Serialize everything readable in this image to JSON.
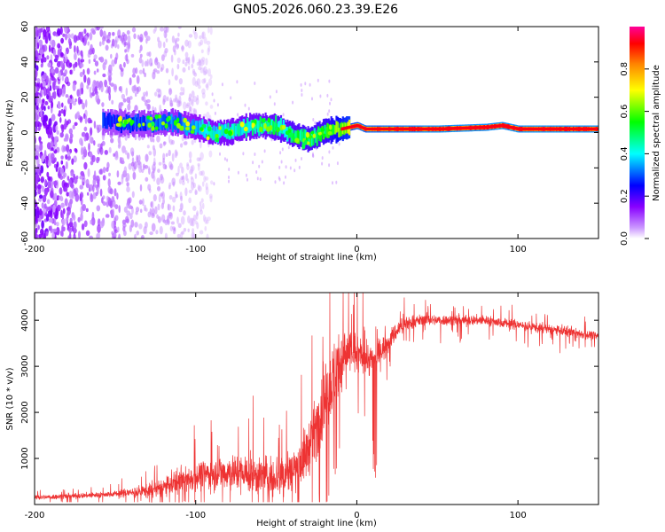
{
  "page": {
    "title": "GN05.2026.060.23.39.E26"
  },
  "chart_data": [
    {
      "type": "heatmap",
      "name": "spectrogram",
      "title": "GN05.2026.060.23.39.E26",
      "xlabel": "Height of straight line (km)",
      "ylabel": "Frequency (Hz)",
      "xlim": [
        -200,
        150
      ],
      "ylim": [
        -60,
        60
      ],
      "xticks": [
        "-200",
        "-100",
        "0",
        "100"
      ],
      "yticks": [
        "-60",
        "-40",
        "-20",
        "0",
        "20",
        "40",
        "60"
      ],
      "colorbar": {
        "label": "Normalized spectral amplitude",
        "range": [
          0,
          1
        ],
        "ticks": [
          "0.0",
          "0.2",
          "0.4",
          "0.6",
          "0.8"
        ]
      },
      "band_center_freq": [
        [
          -155,
          6
        ],
        [
          -140,
          5
        ],
        [
          -125,
          5
        ],
        [
          -115,
          6
        ],
        [
          -100,
          3
        ],
        [
          -90,
          0
        ],
        [
          -80,
          0
        ],
        [
          -70,
          3
        ],
        [
          -60,
          4
        ],
        [
          -50,
          3
        ],
        [
          -40,
          -1
        ],
        [
          -30,
          -4
        ],
        [
          -20,
          1
        ],
        [
          -10,
          2
        ],
        [
          -5,
          3
        ],
        [
          0,
          4
        ],
        [
          5,
          2
        ],
        [
          20,
          2
        ],
        [
          50,
          2
        ],
        [
          80,
          3
        ],
        [
          90,
          4
        ],
        [
          100,
          2
        ],
        [
          150,
          2
        ]
      ],
      "band_intensity": [
        [
          -155,
          0.3
        ],
        [
          -120,
          0.35
        ],
        [
          -90,
          0.45
        ],
        [
          -60,
          0.5
        ],
        [
          -40,
          0.55
        ],
        [
          -20,
          0.6
        ],
        [
          -10,
          0.75
        ],
        [
          0,
          0.85
        ],
        [
          50,
          0.95
        ],
        [
          150,
          0.95
        ]
      ]
    },
    {
      "type": "line",
      "name": "snr",
      "xlabel": "Height of straight line (km)",
      "ylabel": "SNR (10 * v/v)",
      "xlim": [
        -200,
        150
      ],
      "ylim": [
        0,
        4600
      ],
      "xticks": [
        "-200",
        "-100",
        "0",
        "100"
      ],
      "yticks": [
        "1000",
        "2000",
        "3000",
        "4000"
      ],
      "color": "#ee3333",
      "series": [
        {
          "name": "SNR",
          "x": [
            -200,
            -180,
            -160,
            -140,
            -125,
            -115,
            -105,
            -95,
            -85,
            -75,
            -65,
            -55,
            -45,
            -38,
            -32,
            -27,
            -22,
            -18,
            -15,
            -12,
            -10,
            -8,
            -5,
            0,
            5,
            8,
            11,
            13,
            15,
            18,
            22,
            27,
            32,
            40,
            60,
            80,
            100,
            120,
            150
          ],
          "y": [
            150,
            180,
            210,
            260,
            320,
            430,
            550,
            650,
            700,
            700,
            640,
            600,
            660,
            780,
            1050,
            1500,
            2000,
            2450,
            2750,
            2950,
            3100,
            3250,
            3300,
            3250,
            3200,
            3150,
            3100,
            3250,
            3350,
            3450,
            3650,
            3850,
            3950,
            4000,
            4000,
            4000,
            3900,
            3800,
            3650
          ]
        }
      ],
      "noise_amplitude": [
        [
          -200,
          80
        ],
        [
          -150,
          100
        ],
        [
          -120,
          300
        ],
        [
          -80,
          600
        ],
        [
          -50,
          700
        ],
        [
          -30,
          900
        ],
        [
          -15,
          1200
        ],
        [
          0,
          700
        ],
        [
          20,
          350
        ],
        [
          40,
          180
        ],
        [
          150,
          150
        ]
      ]
    }
  ]
}
